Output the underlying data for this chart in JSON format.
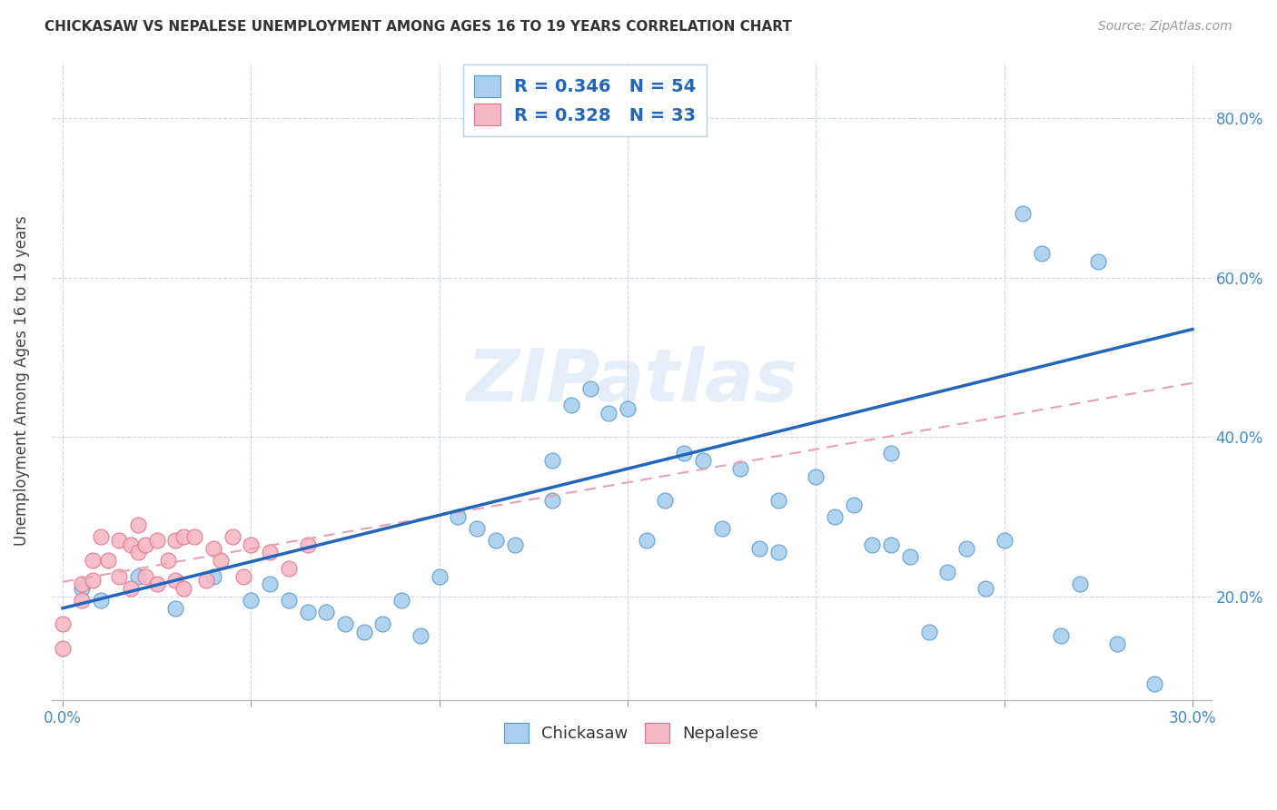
{
  "title": "CHICKASAW VS NEPALESE UNEMPLOYMENT AMONG AGES 16 TO 19 YEARS CORRELATION CHART",
  "source": "Source: ZipAtlas.com",
  "ylabel": "Unemployment Among Ages 16 to 19 years",
  "xlim": [
    -0.003,
    0.305
  ],
  "ylim": [
    0.07,
    0.87
  ],
  "xticks": [
    0.0,
    0.05,
    0.1,
    0.15,
    0.2,
    0.25,
    0.3
  ],
  "xtick_labels": [
    "0.0%",
    "",
    "",
    "",
    "",
    "",
    "30.0%"
  ],
  "ytick_labels": [
    "20.0%",
    "40.0%",
    "60.0%",
    "80.0%"
  ],
  "yticks": [
    0.2,
    0.4,
    0.6,
    0.8
  ],
  "chickasaw_color": "#a8cfee",
  "chickasaw_edge": "#5599cc",
  "nepalese_color": "#f5b8c5",
  "nepalese_edge": "#e07090",
  "trend_blue": "#2266bb",
  "trend_pink": "#e8a0b0",
  "R_chickasaw": 0.346,
  "N_chickasaw": 54,
  "R_nepalese": 0.328,
  "N_nepalese": 33,
  "chickasaw_x": [
    0.005,
    0.01,
    0.02,
    0.03,
    0.04,
    0.05,
    0.055,
    0.06,
    0.065,
    0.07,
    0.075,
    0.08,
    0.085,
    0.09,
    0.095,
    0.1,
    0.105,
    0.11,
    0.115,
    0.12,
    0.13,
    0.13,
    0.135,
    0.14,
    0.145,
    0.15,
    0.155,
    0.16,
    0.165,
    0.17,
    0.175,
    0.18,
    0.185,
    0.19,
    0.19,
    0.2,
    0.205,
    0.21,
    0.215,
    0.22,
    0.22,
    0.225,
    0.23,
    0.235,
    0.24,
    0.245,
    0.25,
    0.255,
    0.26,
    0.265,
    0.27,
    0.275,
    0.28,
    0.29
  ],
  "chickasaw_y": [
    0.21,
    0.195,
    0.225,
    0.185,
    0.225,
    0.195,
    0.215,
    0.195,
    0.18,
    0.18,
    0.165,
    0.155,
    0.165,
    0.195,
    0.15,
    0.225,
    0.3,
    0.285,
    0.27,
    0.265,
    0.32,
    0.37,
    0.44,
    0.46,
    0.43,
    0.435,
    0.27,
    0.32,
    0.38,
    0.37,
    0.285,
    0.36,
    0.26,
    0.32,
    0.255,
    0.35,
    0.3,
    0.315,
    0.265,
    0.38,
    0.265,
    0.25,
    0.155,
    0.23,
    0.26,
    0.21,
    0.27,
    0.68,
    0.63,
    0.15,
    0.215,
    0.62,
    0.14,
    0.09
  ],
  "nepalese_x": [
    0.0,
    0.0,
    0.005,
    0.005,
    0.008,
    0.008,
    0.01,
    0.012,
    0.015,
    0.015,
    0.018,
    0.018,
    0.02,
    0.02,
    0.022,
    0.022,
    0.025,
    0.025,
    0.028,
    0.03,
    0.03,
    0.032,
    0.032,
    0.035,
    0.038,
    0.04,
    0.042,
    0.045,
    0.048,
    0.05,
    0.055,
    0.06,
    0.065
  ],
  "nepalese_y": [
    0.165,
    0.135,
    0.215,
    0.195,
    0.245,
    0.22,
    0.275,
    0.245,
    0.27,
    0.225,
    0.265,
    0.21,
    0.29,
    0.255,
    0.265,
    0.225,
    0.27,
    0.215,
    0.245,
    0.27,
    0.22,
    0.275,
    0.21,
    0.275,
    0.22,
    0.26,
    0.245,
    0.275,
    0.225,
    0.265,
    0.255,
    0.235,
    0.265
  ],
  "watermark": "ZIPatlas",
  "figsize": [
    14.06,
    8.92
  ],
  "dpi": 100
}
